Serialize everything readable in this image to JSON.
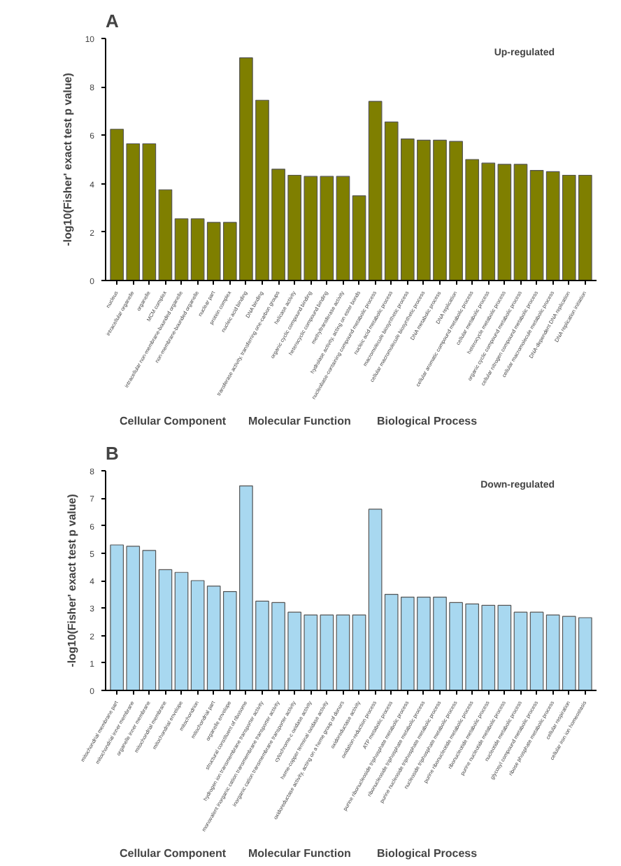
{
  "chart_data": [
    {
      "type": "bar",
      "title": "A",
      "ylabel": "-log10(Fisher' exact test p value)",
      "color": "#7f7f00",
      "ylim": [
        0,
        10
      ],
      "yticks": [
        0,
        2,
        4,
        6,
        8,
        10
      ],
      "grid": false,
      "categories": [
        "nucleus",
        "intracellular organelle",
        "organelle",
        "MCM complex",
        "intracellular non-membrane-bounded organelle",
        "non-membrane-bounded organelle",
        "nuclear part",
        "protein complex",
        "nucleic acid binding",
        "DNA binding",
        "transferase activity, transferring one-carbon groups",
        "helicase activity",
        "organic cyclic compound binding",
        "heterocyclic compound binding",
        "methyltransferase activity",
        "hydrolase activity, acting on ester bonds",
        "nucleobase-containing compound metabolic process",
        "nucleic acid metabolic process",
        "macromolecule biosynthetic process",
        "cellular macromolecule biosynthetic process",
        "DNA metabolic process",
        "DNA replication",
        "cellular aromatic compound metabolic process",
        "cellular metabolic process",
        "heterocycle metabolic process",
        "organic cyclic compound metabolic process",
        "cellular nitrogen compound metabolic process",
        "cellular macromolecule metabolic process",
        "DNA-dependent DNA replication",
        "DNA replication initiation"
      ],
      "values": [
        6.25,
        5.65,
        5.65,
        3.75,
        2.55,
        2.55,
        2.4,
        2.4,
        9.2,
        7.45,
        4.6,
        4.35,
        4.3,
        4.3,
        4.3,
        3.5,
        7.4,
        6.55,
        5.85,
        5.8,
        5.8,
        5.75,
        5.0,
        4.85,
        4.8,
        4.8,
        4.55,
        4.5,
        4.35,
        4.35
      ],
      "annotations": [
        "Up-regulated",
        "Cellular Component",
        "Molecular Function",
        "Biological Process"
      ]
    },
    {
      "type": "bar",
      "title": "B",
      "ylabel": "-log10(Fisher' exact test p value)",
      "color": "#a8d8f0",
      "ylim": [
        0,
        8
      ],
      "yticks": [
        0,
        1,
        2,
        3,
        4,
        5,
        6,
        7,
        8
      ],
      "grid": false,
      "categories": [
        "mitochondrial membrane part",
        "mitochondrial inner membrane",
        "organelle inner membrane",
        "mitochondrial membrane",
        "mitochondrial envelope",
        "mitochondrion",
        "mitochondrial part",
        "organelle envelope",
        "structural constituent of ribosome",
        "hydrogen ion transmembrane transporter activity",
        "monovalent inorganic cation transmembrane transporter activity",
        "inorganic cation transmembrane transporter activity",
        "cytochrome-c oxidase activity",
        "heme-copper terminal oxidase activity",
        "oxidoreductase activity, acting on a heme group of donors",
        "oxidoreductase activity",
        "oxidation-reduction process",
        "ATP metabolic process",
        "purine ribonucleoside triphosphate metabolic process",
        "ribonucleoside triphosphate metabolic process",
        "purine nucleoside triphosphate metabolic process",
        "nucleoside triphosphate metabolic process",
        "purine ribonucleotide metabolic process",
        "ribonucleotide metabolic process",
        "purine nucleotide metabolic process",
        "nucleotide metabolic process",
        "glycosyl compound metabolic process",
        "ribose phosphate metabolic process",
        "cellular respiration",
        "cellular iron ion homeostasis"
      ],
      "values": [
        5.3,
        5.25,
        5.1,
        4.4,
        4.3,
        4.0,
        3.8,
        3.6,
        7.45,
        3.25,
        3.2,
        2.85,
        2.75,
        2.75,
        2.75,
        2.75,
        6.6,
        3.5,
        3.4,
        3.4,
        3.4,
        3.2,
        3.15,
        3.1,
        3.1,
        2.85,
        2.85,
        2.75,
        2.7,
        2.65
      ],
      "annotations": [
        "Down-regulated",
        "Cellular Component",
        "Molecular Function",
        "Biological Process"
      ]
    }
  ]
}
